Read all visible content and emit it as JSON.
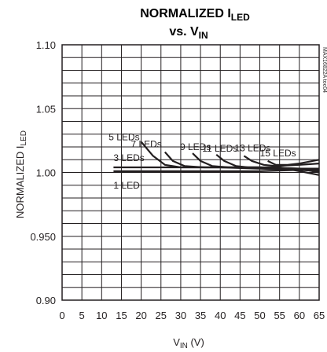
{
  "chart_data": {
    "type": "line",
    "title_line1": "NORMALIZED I",
    "title_line1_sub": "LED",
    "title_line2": "vs. V",
    "title_line2_sub": "IN",
    "xlabel": "V",
    "xlabel_sub": "IN",
    "xlabel_unit": " (V)",
    "ylabel": "NORMALIZED I",
    "ylabel_sub": "LED",
    "identifier": "MAX16822A toc04",
    "xlim": [
      0,
      65
    ],
    "ylim": [
      0.9,
      1.1
    ],
    "x_ticks": [
      "0",
      "5",
      "10",
      "15",
      "20",
      "25",
      "30",
      "35",
      "40",
      "45",
      "50",
      "55",
      "60",
      "65"
    ],
    "y_ticks": [
      "0.90",
      "0.950",
      "1.00",
      "1.05",
      "1.10"
    ],
    "y_tick_values": [
      0.9,
      0.95,
      1.0,
      1.05,
      1.1
    ],
    "grid": true,
    "series": [
      {
        "name": "1 LED",
        "x": [
          13,
          20,
          30,
          40,
          50,
          60,
          65
        ],
        "y": [
          1.001,
          1.001,
          1.001,
          1.001,
          1.001,
          1.002,
          1.002
        ]
      },
      {
        "name": "3 LEDs",
        "x": [
          13,
          20,
          30,
          40,
          50,
          60,
          65
        ],
        "y": [
          1.004,
          1.004,
          1.004,
          1.004,
          1.003,
          1.002,
          1.001
        ]
      },
      {
        "name": "5 LEDs",
        "x": [
          20,
          23,
          26,
          30,
          40,
          50,
          60,
          65
        ],
        "y": [
          1.024,
          1.013,
          1.006,
          1.004,
          1.004,
          1.004,
          1.003,
          1.002
        ]
      },
      {
        "name": "7 LEDs",
        "x": [
          26,
          28,
          31,
          36,
          45,
          55,
          65
        ],
        "y": [
          1.016,
          1.009,
          1.005,
          1.004,
          1.004,
          1.003,
          1.003
        ]
      },
      {
        "name": "9 LEDs",
        "x": [
          33,
          35,
          38,
          42,
          50,
          60,
          65
        ],
        "y": [
          1.015,
          1.009,
          1.005,
          1.004,
          1.004,
          1.003,
          1.0
        ]
      },
      {
        "name": "11 LEDs",
        "x": [
          39,
          41,
          44,
          47,
          55,
          65
        ],
        "y": [
          1.014,
          1.009,
          1.005,
          1.004,
          1.004,
          0.998
        ]
      },
      {
        "name": "13 LEDs",
        "x": [
          46,
          48,
          51,
          54,
          60,
          65
        ],
        "y": [
          1.013,
          1.009,
          1.006,
          1.005,
          1.006,
          1.007
        ]
      },
      {
        "name": "15 LEDs",
        "x": [
          52,
          54,
          57,
          60,
          65
        ],
        "y": [
          1.009,
          1.006,
          1.006,
          1.007,
          1.01
        ]
      }
    ]
  }
}
